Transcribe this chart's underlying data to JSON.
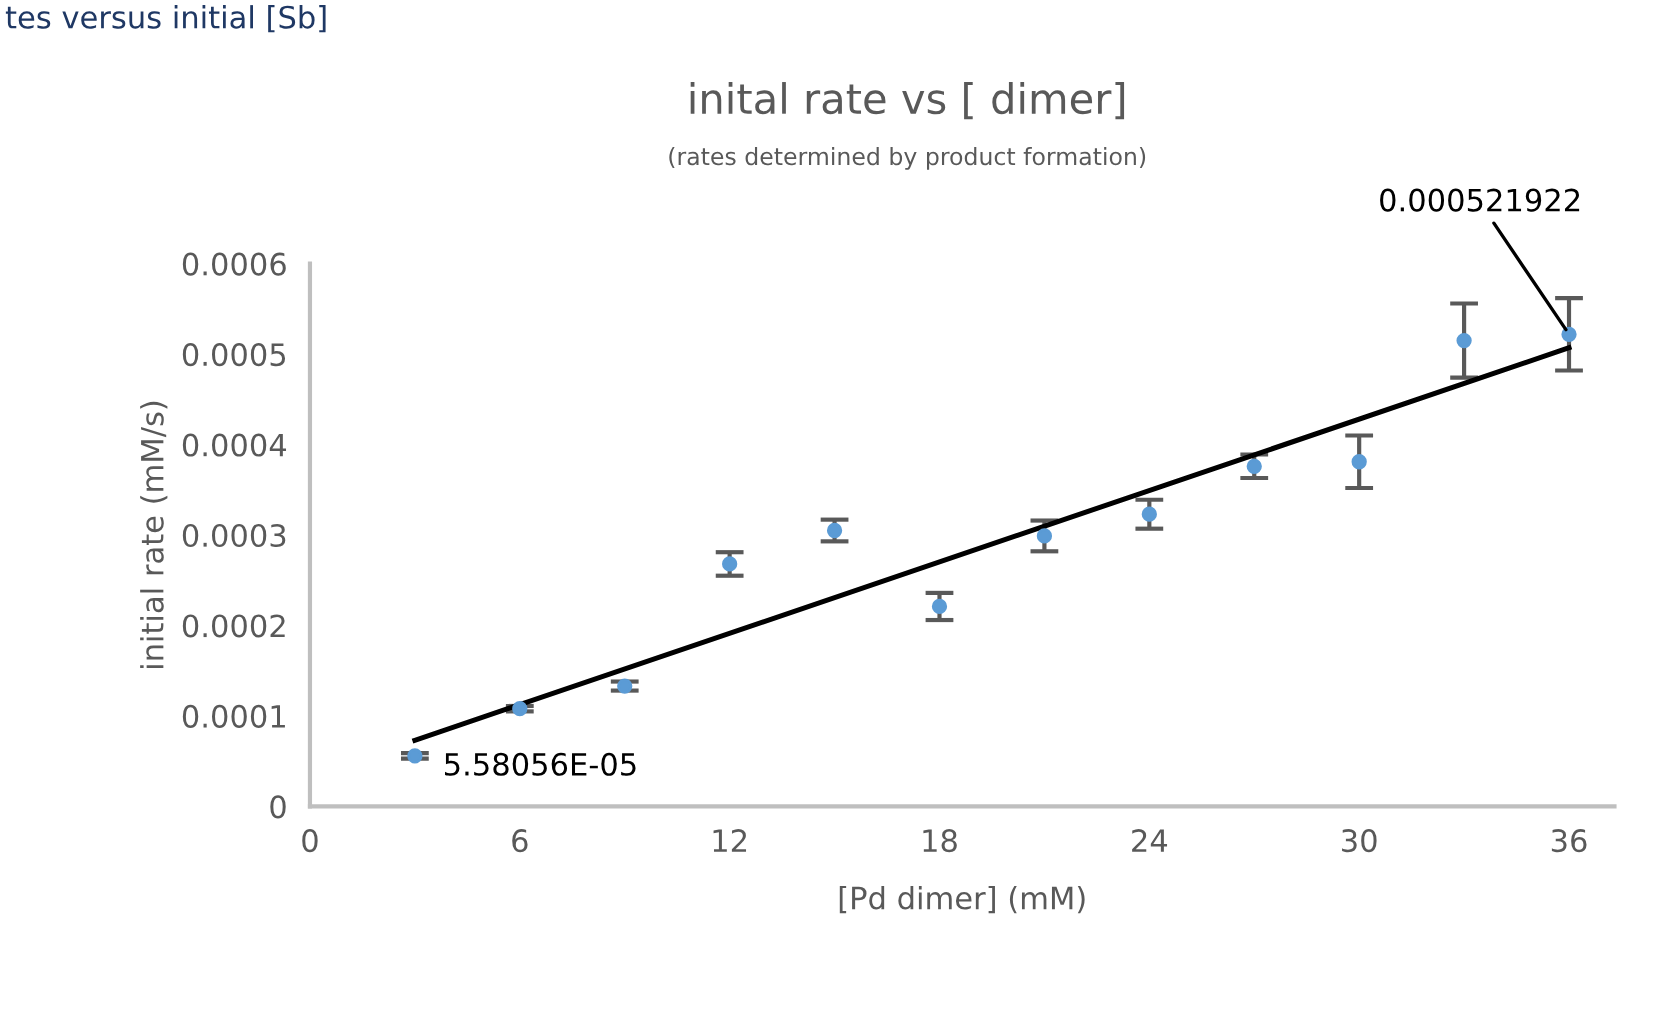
{
  "chart_data": {
    "type": "scatter",
    "title": "inital rate vs [ dimer]",
    "subtitle": "(rates determined by product formation)",
    "xlabel": "[Pd dimer] (mM)",
    "ylabel": "initial rate (mM/s)",
    "annotations": [
      "tes versus initial [Sb]"
    ],
    "x": [
      3,
      6,
      9,
      12,
      15,
      18,
      21,
      24,
      27,
      30,
      33,
      36
    ],
    "series": [
      {
        "color": "#5b9bd5",
        "marker": "circle",
        "values": [
          5.58056e-05,
          0.000108,
          0.000133,
          0.000268,
          0.000305,
          0.000221,
          0.000299,
          0.000323,
          0.000376,
          0.000381,
          0.000515,
          0.000521922
        ],
        "errors": [
          3e-06,
          3e-06,
          5e-06,
          1.3e-05,
          1.2e-05,
          1.5e-05,
          1.7e-05,
          1.6e-05,
          1.3e-05,
          2.9e-05,
          4.1e-05,
          4e-05
        ],
        "value_labels": [
          "5.58056E-05",
          null,
          null,
          null,
          null,
          null,
          null,
          null,
          null,
          null,
          null,
          "0.000521922"
        ]
      },
      {
        "type": "line",
        "marker": "none",
        "color": "#000000",
        "x": [
          3,
          36
        ],
        "values": [
          7.3e-05,
          0.000507
        ]
      }
    ],
    "line_style": "solid",
    "grid": false,
    "legend": false,
    "xlim": [
      0,
      37.3
    ],
    "xticks": [
      0,
      6,
      12,
      18,
      24,
      30,
      36
    ],
    "ylim": [
      0,
      0.0006
    ],
    "yticks": [
      0,
      0.0001,
      0.0002,
      0.0003,
      0.0004,
      0.0005,
      0.0006
    ]
  }
}
